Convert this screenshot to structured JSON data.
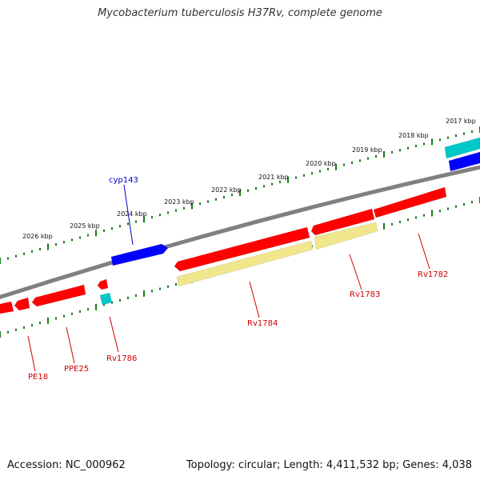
{
  "title": "Mycobacterium tuberculosis H37Rv, complete genome",
  "footer": {
    "accession": "Accession: NC_000962",
    "summary": "Topology: circular; Length: 4,411,532 bp; Genes: 4,038"
  },
  "colors": {
    "backbone": "#808080",
    "tick": "#1a7a1a",
    "gene_red": "#ff0000",
    "gene_blue": "#0000ff",
    "gene_cyan": "#00c8c8",
    "gene_khaki": "#f0e68c",
    "label_red": "#cc0000",
    "label_blue": "#0000cc"
  },
  "scale_labels": [
    {
      "kbp": 2017,
      "text": "2017 kbp"
    },
    {
      "kbp": 2018,
      "text": "2018 kbp"
    },
    {
      "kbp": 2019,
      "text": "2019 kbp"
    },
    {
      "kbp": 2020,
      "text": "2020 kbp"
    },
    {
      "kbp": 2021,
      "text": "2021 kbp"
    },
    {
      "kbp": 2022,
      "text": "2022 kbp"
    },
    {
      "kbp": 2023,
      "text": "2023 kbp"
    },
    {
      "kbp": 2024,
      "text": "2024 kbp"
    },
    {
      "kbp": 2025,
      "text": "2025 kbp"
    },
    {
      "kbp": 2026,
      "text": "2026 kbp"
    }
  ],
  "gene_labels": [
    {
      "text": "cyp143",
      "color": "blue"
    },
    {
      "text": "Rv1782",
      "color": "red"
    },
    {
      "text": "Rv1783",
      "color": "red"
    },
    {
      "text": "Rv1784",
      "color": "red"
    },
    {
      "text": "Rv1786",
      "color": "red"
    },
    {
      "text": "PPE25",
      "color": "red"
    },
    {
      "text": "PE18",
      "color": "red"
    }
  ]
}
